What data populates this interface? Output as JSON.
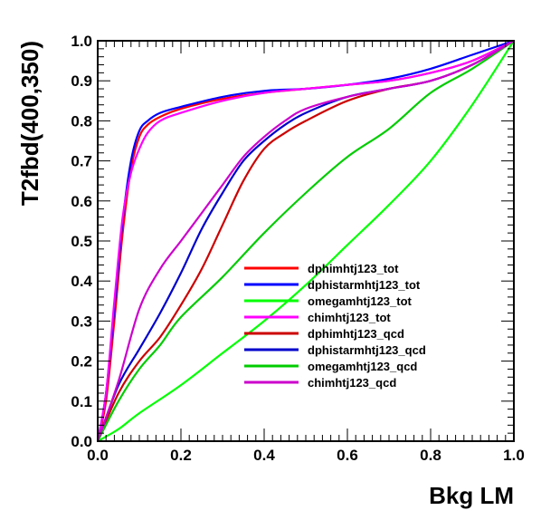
{
  "chart_data": {
    "type": "line",
    "title": "",
    "xlabel": "Bkg LM",
    "ylabel": "T2fbd(400,350)",
    "xlim": [
      0.0,
      1.0
    ],
    "ylim": [
      0.0,
      1.0
    ],
    "xticks": [
      "0.0",
      "0.2",
      "0.4",
      "0.6",
      "0.8",
      "1.0"
    ],
    "yticks": [
      "0.0",
      "0.1",
      "0.2",
      "0.3",
      "0.4",
      "0.5",
      "0.6",
      "0.7",
      "0.8",
      "0.9",
      "1.0"
    ],
    "grid": false,
    "legend_position": "center-right",
    "series": [
      {
        "name": "dphimhtj123_tot",
        "color": "#ff0000",
        "points": [
          [
            0,
            0
          ],
          [
            0.02,
            0.1
          ],
          [
            0.04,
            0.3
          ],
          [
            0.06,
            0.52
          ],
          [
            0.08,
            0.68
          ],
          [
            0.1,
            0.76
          ],
          [
            0.12,
            0.79
          ],
          [
            0.15,
            0.81
          ],
          [
            0.2,
            0.83
          ],
          [
            0.3,
            0.855
          ],
          [
            0.4,
            0.87
          ],
          [
            0.5,
            0.88
          ],
          [
            0.6,
            0.89
          ],
          [
            0.7,
            0.9
          ],
          [
            0.8,
            0.92
          ],
          [
            0.9,
            0.95
          ],
          [
            1.0,
            1.0
          ]
        ]
      },
      {
        "name": "dphistarmhtj123_tot",
        "color": "#0000ff",
        "points": [
          [
            0,
            0
          ],
          [
            0.02,
            0.12
          ],
          [
            0.04,
            0.33
          ],
          [
            0.06,
            0.55
          ],
          [
            0.08,
            0.7
          ],
          [
            0.1,
            0.775
          ],
          [
            0.12,
            0.8
          ],
          [
            0.15,
            0.82
          ],
          [
            0.2,
            0.835
          ],
          [
            0.3,
            0.86
          ],
          [
            0.4,
            0.875
          ],
          [
            0.5,
            0.88
          ],
          [
            0.6,
            0.89
          ],
          [
            0.7,
            0.905
          ],
          [
            0.8,
            0.93
          ],
          [
            0.9,
            0.965
          ],
          [
            1.0,
            1.0
          ]
        ]
      },
      {
        "name": "omegamhtj123_tot",
        "color": "#00ff00",
        "points": [
          [
            0,
            0
          ],
          [
            0.05,
            0.03
          ],
          [
            0.1,
            0.07
          ],
          [
            0.2,
            0.14
          ],
          [
            0.3,
            0.22
          ],
          [
            0.4,
            0.3
          ],
          [
            0.5,
            0.39
          ],
          [
            0.6,
            0.49
          ],
          [
            0.7,
            0.59
          ],
          [
            0.8,
            0.7
          ],
          [
            0.9,
            0.84
          ],
          [
            1.0,
            1.0
          ]
        ]
      },
      {
        "name": "chimhtj123_tot",
        "color": "#ff00ff",
        "points": [
          [
            0,
            0
          ],
          [
            0.02,
            0.12
          ],
          [
            0.04,
            0.35
          ],
          [
            0.06,
            0.56
          ],
          [
            0.08,
            0.67
          ],
          [
            0.1,
            0.73
          ],
          [
            0.12,
            0.77
          ],
          [
            0.15,
            0.8
          ],
          [
            0.2,
            0.82
          ],
          [
            0.3,
            0.85
          ],
          [
            0.4,
            0.87
          ],
          [
            0.5,
            0.88
          ],
          [
            0.6,
            0.89
          ],
          [
            0.7,
            0.9
          ],
          [
            0.8,
            0.92
          ],
          [
            0.9,
            0.95
          ],
          [
            1.0,
            1.0
          ]
        ]
      },
      {
        "name": "dphimhtj123_qcd",
        "color": "#cc0000",
        "points": [
          [
            0,
            0
          ],
          [
            0.05,
            0.12
          ],
          [
            0.1,
            0.2
          ],
          [
            0.15,
            0.26
          ],
          [
            0.2,
            0.34
          ],
          [
            0.25,
            0.43
          ],
          [
            0.3,
            0.54
          ],
          [
            0.35,
            0.65
          ],
          [
            0.4,
            0.73
          ],
          [
            0.45,
            0.77
          ],
          [
            0.5,
            0.8
          ],
          [
            0.6,
            0.85
          ],
          [
            0.7,
            0.88
          ],
          [
            0.8,
            0.9
          ],
          [
            0.9,
            0.94
          ],
          [
            1.0,
            1.0
          ]
        ]
      },
      {
        "name": "dphistarmhtj123_qcd",
        "color": "#0000cc",
        "points": [
          [
            0,
            0
          ],
          [
            0.05,
            0.14
          ],
          [
            0.1,
            0.23
          ],
          [
            0.15,
            0.32
          ],
          [
            0.2,
            0.42
          ],
          [
            0.25,
            0.53
          ],
          [
            0.3,
            0.62
          ],
          [
            0.35,
            0.7
          ],
          [
            0.4,
            0.75
          ],
          [
            0.45,
            0.79
          ],
          [
            0.5,
            0.82
          ],
          [
            0.6,
            0.86
          ],
          [
            0.7,
            0.88
          ],
          [
            0.8,
            0.9
          ],
          [
            0.9,
            0.94
          ],
          [
            1.0,
            1.0
          ]
        ]
      },
      {
        "name": "omegamhtj123_qcd",
        "color": "#00cc00",
        "points": [
          [
            0,
            0
          ],
          [
            0.05,
            0.1
          ],
          [
            0.1,
            0.18
          ],
          [
            0.15,
            0.24
          ],
          [
            0.2,
            0.31
          ],
          [
            0.3,
            0.41
          ],
          [
            0.4,
            0.52
          ],
          [
            0.5,
            0.62
          ],
          [
            0.6,
            0.71
          ],
          [
            0.7,
            0.78
          ],
          [
            0.8,
            0.87
          ],
          [
            0.9,
            0.93
          ],
          [
            1.0,
            1.0
          ]
        ]
      },
      {
        "name": "chimhtj123_qcd",
        "color": "#cc00cc",
        "points": [
          [
            0,
            0
          ],
          [
            0.05,
            0.15
          ],
          [
            0.1,
            0.33
          ],
          [
            0.15,
            0.43
          ],
          [
            0.2,
            0.5
          ],
          [
            0.25,
            0.57
          ],
          [
            0.3,
            0.64
          ],
          [
            0.35,
            0.71
          ],
          [
            0.4,
            0.76
          ],
          [
            0.45,
            0.8
          ],
          [
            0.5,
            0.83
          ],
          [
            0.6,
            0.86
          ],
          [
            0.7,
            0.88
          ],
          [
            0.8,
            0.9
          ],
          [
            0.9,
            0.94
          ],
          [
            1.0,
            1.0
          ]
        ]
      }
    ]
  }
}
